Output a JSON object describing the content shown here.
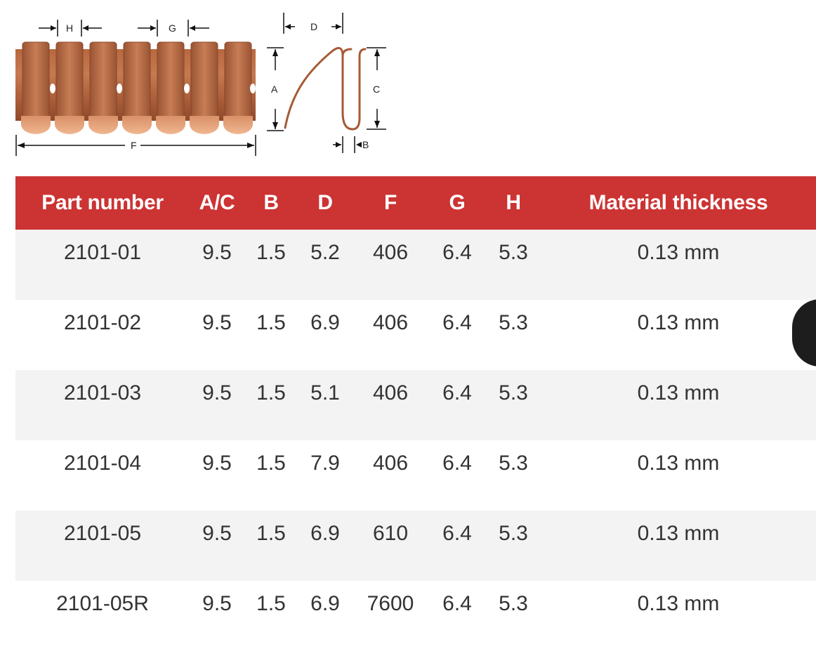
{
  "diagram": {
    "labels": {
      "h": "H",
      "g": "G",
      "d": "D",
      "a": "A",
      "c": "C",
      "b": "B",
      "f": "F"
    },
    "colors": {
      "copper": "#c97a52",
      "copper_dark": "#9a5434",
      "copper_light": "#efb08c",
      "wire": "#a65a36"
    }
  },
  "table": {
    "headers": [
      "Part number",
      "A/C",
      "B",
      "D",
      "F",
      "G",
      "H",
      "Material thickness"
    ],
    "rows": [
      [
        "2101-01",
        "9.5",
        "1.5",
        "5.2",
        "406",
        "6.4",
        "5.3",
        "0.13 mm"
      ],
      [
        "2101-02",
        "9.5",
        "1.5",
        "6.9",
        "406",
        "6.4",
        "5.3",
        "0.13 mm"
      ],
      [
        "2101-03",
        "9.5",
        "1.5",
        "5.1",
        "406",
        "6.4",
        "5.3",
        "0.13 mm"
      ],
      [
        "2101-04",
        "9.5",
        "1.5",
        "7.9",
        "406",
        "6.4",
        "5.3",
        "0.13 mm"
      ],
      [
        "2101-05",
        "9.5",
        "1.5",
        "6.9",
        "610",
        "6.4",
        "5.3",
        "0.13 mm"
      ],
      [
        "2101-05R",
        "9.5",
        "1.5",
        "6.9",
        "7600",
        "6.4",
        "5.3",
        "0.13 mm"
      ]
    ],
    "colors": {
      "header_bg": "#cc3333",
      "stripe": "#f3f3f3"
    }
  }
}
